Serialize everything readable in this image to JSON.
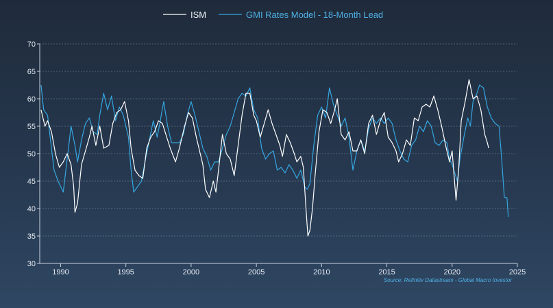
{
  "chart_data": {
    "type": "line",
    "title": "",
    "xlabel": "",
    "ylabel": "",
    "xlim": [
      1988.4,
      2025
    ],
    "ylim": [
      30,
      70
    ],
    "xticks": [
      1990,
      1995,
      2000,
      2005,
      2010,
      2015,
      2020,
      2025
    ],
    "yticks": [
      30,
      35,
      40,
      45,
      50,
      55,
      60,
      65,
      70
    ],
    "grid": "horizontal dashed",
    "legend_position": "top-center",
    "source": "Source: Refinitiv Datastream - Global Macro Investor",
    "series": [
      {
        "name": "ISM",
        "color": "#ffffff",
        "points": [
          [
            1988.5,
            58.0
          ],
          [
            1988.8,
            55.0
          ],
          [
            1989.0,
            56.0
          ],
          [
            1989.3,
            54.0
          ],
          [
            1989.6,
            50.0
          ],
          [
            1989.9,
            47.5
          ],
          [
            1990.2,
            48.5
          ],
          [
            1990.5,
            50.0
          ],
          [
            1990.8,
            48.0
          ],
          [
            1991.0,
            44.0
          ],
          [
            1991.1,
            39.3
          ],
          [
            1991.3,
            41.0
          ],
          [
            1991.6,
            48.0
          ],
          [
            1991.9,
            50.5
          ],
          [
            1992.2,
            53.0
          ],
          [
            1992.4,
            55.0
          ],
          [
            1992.7,
            51.5
          ],
          [
            1993.0,
            55.0
          ],
          [
            1993.3,
            51.0
          ],
          [
            1993.7,
            51.5
          ],
          [
            1994.0,
            55.5
          ],
          [
            1994.3,
            57.5
          ],
          [
            1994.6,
            58.0
          ],
          [
            1994.9,
            59.5
          ],
          [
            1995.2,
            56.0
          ],
          [
            1995.4,
            51.0
          ],
          [
            1995.7,
            47.0
          ],
          [
            1996.0,
            46.0
          ],
          [
            1996.3,
            45.5
          ],
          [
            1996.6,
            51.0
          ],
          [
            1996.9,
            53.0
          ],
          [
            1997.2,
            54.0
          ],
          [
            1997.5,
            56.0
          ],
          [
            1997.8,
            55.5
          ],
          [
            1998.0,
            54.0
          ],
          [
            1998.4,
            51.0
          ],
          [
            1998.8,
            48.5
          ],
          [
            1999.1,
            51.0
          ],
          [
            1999.5,
            55.0
          ],
          [
            1999.8,
            57.5
          ],
          [
            2000.1,
            56.5
          ],
          [
            2000.4,
            53.0
          ],
          [
            2000.7,
            50.0
          ],
          [
            2000.9,
            48.0
          ],
          [
            2001.1,
            43.5
          ],
          [
            2001.4,
            42.0
          ],
          [
            2001.7,
            45.0
          ],
          [
            2001.9,
            43.0
          ],
          [
            2002.1,
            47.0
          ],
          [
            2002.4,
            53.5
          ],
          [
            2002.7,
            50.0
          ],
          [
            2003.0,
            49.0
          ],
          [
            2003.3,
            46.0
          ],
          [
            2003.6,
            51.5
          ],
          [
            2003.9,
            57.0
          ],
          [
            2004.2,
            61.0
          ],
          [
            2004.5,
            61.0
          ],
          [
            2004.8,
            57.0
          ],
          [
            2005.0,
            56.0
          ],
          [
            2005.3,
            53.0
          ],
          [
            2005.6,
            55.5
          ],
          [
            2005.9,
            58.0
          ],
          [
            2006.2,
            55.5
          ],
          [
            2006.5,
            53.5
          ],
          [
            2006.8,
            51.5
          ],
          [
            2007.0,
            49.5
          ],
          [
            2007.3,
            53.5
          ],
          [
            2007.6,
            52.0
          ],
          [
            2007.9,
            50.0
          ],
          [
            2008.1,
            48.5
          ],
          [
            2008.4,
            49.5
          ],
          [
            2008.6,
            47.5
          ],
          [
            2008.8,
            40.0
          ],
          [
            2008.95,
            35.0
          ],
          [
            2009.1,
            36.0
          ],
          [
            2009.3,
            40.0
          ],
          [
            2009.5,
            46.0
          ],
          [
            2009.8,
            54.0
          ],
          [
            2010.1,
            58.0
          ],
          [
            2010.4,
            57.5
          ],
          [
            2010.7,
            55.5
          ],
          [
            2011.0,
            58.0
          ],
          [
            2011.2,
            60.0
          ],
          [
            2011.5,
            53.5
          ],
          [
            2011.8,
            52.5
          ],
          [
            2012.1,
            54.0
          ],
          [
            2012.4,
            50.5
          ],
          [
            2012.7,
            50.5
          ],
          [
            2013.0,
            52.5
          ],
          [
            2013.3,
            50.0
          ],
          [
            2013.6,
            55.5
          ],
          [
            2013.9,
            57.0
          ],
          [
            2014.2,
            53.5
          ],
          [
            2014.5,
            56.0
          ],
          [
            2014.8,
            57.5
          ],
          [
            2015.1,
            53.0
          ],
          [
            2015.4,
            52.0
          ],
          [
            2015.7,
            50.5
          ],
          [
            2015.9,
            48.5
          ],
          [
            2016.2,
            50.0
          ],
          [
            2016.5,
            52.5
          ],
          [
            2016.8,
            51.5
          ],
          [
            2017.1,
            56.5
          ],
          [
            2017.4,
            56.0
          ],
          [
            2017.7,
            58.5
          ],
          [
            2018.0,
            59.0
          ],
          [
            2018.3,
            58.5
          ],
          [
            2018.6,
            60.5
          ],
          [
            2018.9,
            58.0
          ],
          [
            2019.2,
            55.0
          ],
          [
            2019.5,
            51.5
          ],
          [
            2019.8,
            48.5
          ],
          [
            2020.0,
            50.5
          ],
          [
            2020.3,
            41.5
          ],
          [
            2020.5,
            47.0
          ],
          [
            2020.7,
            56.0
          ],
          [
            2021.0,
            59.5
          ],
          [
            2021.3,
            63.5
          ],
          [
            2021.6,
            60.0
          ],
          [
            2021.9,
            60.5
          ],
          [
            2022.2,
            58.0
          ],
          [
            2022.5,
            53.5
          ],
          [
            2022.7,
            52.0
          ],
          [
            2022.8,
            51.0
          ]
        ]
      },
      {
        "name": "GMI Rates Model - 18-Month Lead",
        "color": "#35a6e0",
        "points": [
          [
            1988.5,
            62.5
          ],
          [
            1988.7,
            58.0
          ],
          [
            1989.0,
            57.0
          ],
          [
            1989.3,
            51.0
          ],
          [
            1989.5,
            47.0
          ],
          [
            1989.8,
            45.0
          ],
          [
            1990.0,
            44.0
          ],
          [
            1990.2,
            43.0
          ],
          [
            1990.5,
            49.0
          ],
          [
            1990.8,
            55.0
          ],
          [
            1991.1,
            51.5
          ],
          [
            1991.3,
            48.5
          ],
          [
            1991.6,
            52.5
          ],
          [
            1991.9,
            55.5
          ],
          [
            1992.2,
            56.5
          ],
          [
            1992.5,
            54.0
          ],
          [
            1992.8,
            53.5
          ],
          [
            1993.0,
            57.0
          ],
          [
            1993.3,
            61.0
          ],
          [
            1993.6,
            58.0
          ],
          [
            1993.9,
            60.5
          ],
          [
            1994.2,
            56.0
          ],
          [
            1994.5,
            58.5
          ],
          [
            1994.8,
            57.0
          ],
          [
            1995.0,
            55.0
          ],
          [
            1995.2,
            53.0
          ],
          [
            1995.4,
            47.0
          ],
          [
            1995.6,
            43.0
          ],
          [
            1995.9,
            44.0
          ],
          [
            1996.2,
            45.0
          ],
          [
            1996.5,
            49.0
          ],
          [
            1996.8,
            52.5
          ],
          [
            1997.1,
            56.0
          ],
          [
            1997.4,
            53.0
          ],
          [
            1997.6,
            55.5
          ],
          [
            1997.9,
            59.5
          ],
          [
            1998.2,
            55.0
          ],
          [
            1998.5,
            52.0
          ],
          [
            1998.8,
            52.0
          ],
          [
            1999.1,
            52.0
          ],
          [
            1999.4,
            53.5
          ],
          [
            1999.7,
            57.0
          ],
          [
            2000.0,
            59.5
          ],
          [
            2000.3,
            57.0
          ],
          [
            2000.6,
            54.0
          ],
          [
            2000.9,
            51.0
          ],
          [
            2001.2,
            49.5
          ],
          [
            2001.5,
            47.0
          ],
          [
            2001.8,
            48.5
          ],
          [
            2002.1,
            48.5
          ],
          [
            2002.4,
            51.0
          ],
          [
            2002.7,
            53.5
          ],
          [
            2003.0,
            55.0
          ],
          [
            2003.3,
            57.5
          ],
          [
            2003.6,
            60.0
          ],
          [
            2003.9,
            61.0
          ],
          [
            2004.2,
            60.5
          ],
          [
            2004.5,
            62.0
          ],
          [
            2004.8,
            58.0
          ],
          [
            2005.1,
            56.5
          ],
          [
            2005.4,
            51.0
          ],
          [
            2005.7,
            49.0
          ],
          [
            2006.0,
            50.0
          ],
          [
            2006.3,
            50.5
          ],
          [
            2006.6,
            47.0
          ],
          [
            2006.9,
            47.5
          ],
          [
            2007.2,
            46.5
          ],
          [
            2007.5,
            48.0
          ],
          [
            2007.8,
            47.0
          ],
          [
            2008.1,
            45.5
          ],
          [
            2008.4,
            47.0
          ],
          [
            2008.7,
            44.0
          ],
          [
            2008.9,
            43.5
          ],
          [
            2009.1,
            44.5
          ],
          [
            2009.4,
            51.5
          ],
          [
            2009.7,
            57.0
          ],
          [
            2010.0,
            58.5
          ],
          [
            2010.3,
            56.5
          ],
          [
            2010.6,
            62.0
          ],
          [
            2010.9,
            59.0
          ],
          [
            2011.2,
            57.0
          ],
          [
            2011.5,
            55.0
          ],
          [
            2011.8,
            56.5
          ],
          [
            2012.1,
            53.0
          ],
          [
            2012.4,
            47.0
          ],
          [
            2012.7,
            50.5
          ],
          [
            2013.0,
            52.5
          ],
          [
            2013.3,
            50.5
          ],
          [
            2013.6,
            54.5
          ],
          [
            2013.9,
            56.5
          ],
          [
            2014.2,
            55.5
          ],
          [
            2014.5,
            56.5
          ],
          [
            2014.8,
            55.5
          ],
          [
            2015.1,
            56.5
          ],
          [
            2015.4,
            55.5
          ],
          [
            2015.7,
            52.5
          ],
          [
            2016.0,
            50.5
          ],
          [
            2016.3,
            49.0
          ],
          [
            2016.6,
            48.5
          ],
          [
            2016.9,
            51.5
          ],
          [
            2017.2,
            52.5
          ],
          [
            2017.5,
            55.0
          ],
          [
            2017.8,
            54.0
          ],
          [
            2018.1,
            56.0
          ],
          [
            2018.4,
            55.0
          ],
          [
            2018.7,
            52.0
          ],
          [
            2019.0,
            51.5
          ],
          [
            2019.3,
            52.5
          ],
          [
            2019.6,
            52.0
          ],
          [
            2019.8,
            49.0
          ],
          [
            2020.0,
            48.0
          ],
          [
            2020.2,
            46.5
          ],
          [
            2020.4,
            45.0
          ],
          [
            2020.6,
            49.0
          ],
          [
            2020.9,
            53.0
          ],
          [
            2021.2,
            56.5
          ],
          [
            2021.4,
            55.0
          ],
          [
            2021.6,
            59.5
          ],
          [
            2021.9,
            61.0
          ],
          [
            2022.1,
            62.5
          ],
          [
            2022.4,
            62.0
          ],
          [
            2022.7,
            58.5
          ],
          [
            2023.0,
            56.5
          ],
          [
            2023.3,
            55.5
          ],
          [
            2023.6,
            55.0
          ],
          [
            2023.8,
            49.0
          ],
          [
            2024.0,
            42.0
          ],
          [
            2024.2,
            42.0
          ],
          [
            2024.3,
            38.5
          ]
        ]
      }
    ]
  }
}
